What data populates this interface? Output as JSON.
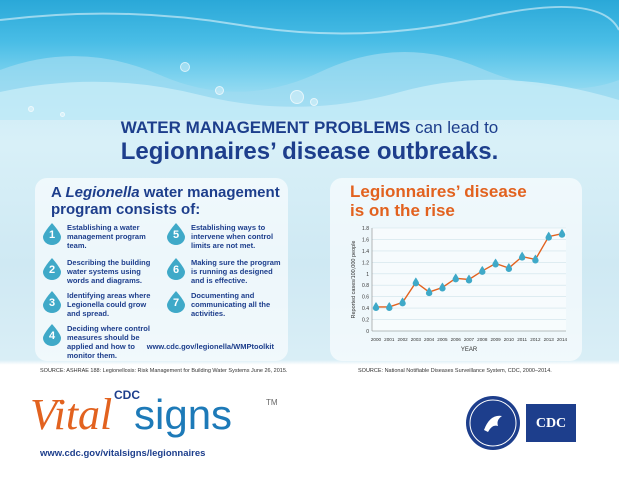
{
  "headline": {
    "line1_prefix": "WATER MANAGEMENT PROBLEMS",
    "line1_suffix": " can lead to",
    "line2": "Legionnaires’ disease outbreaks."
  },
  "left_card": {
    "title_line1_prefix": "A ",
    "title_line1_italic": "Legionella",
    "title_line1_suffix": " water management",
    "title_line2": "program consists of:",
    "steps": [
      {
        "num": "1",
        "text": "Establishing a water management program team."
      },
      {
        "num": "2",
        "text": "Describing the building water systems using words and diagrams."
      },
      {
        "num": "3",
        "text": "Identifying areas where Legionella could grow and spread."
      },
      {
        "num": "4",
        "text": "Deciding where control measures should be applied and how to monitor them."
      },
      {
        "num": "5",
        "text": "Establishing ways to intervene when control limits are not met."
      },
      {
        "num": "6",
        "text": "Making sure the program is running as designed and is effective."
      },
      {
        "num": "7",
        "text": "Documenting and communicating all the activities."
      }
    ],
    "url": "www.cdc.gov/legionella/WMPtoolkit",
    "source": "SOURCE: ASHRAE 188: Legionellosis: Risk Management for Building Water Systems June 26, 2015."
  },
  "right_card": {
    "title_line1": "Legionnaires’ disease",
    "title_line2": "is on the rise",
    "source": "SOURCE: National Notifiable Diseases Surveillance System, CDC, 2000–2014."
  },
  "chart_data": {
    "type": "line",
    "title": "Legionnaires’ disease is on the rise",
    "xlabel": "YEAR",
    "ylabel": "Reported cases/100,000 people",
    "x": [
      "2000",
      "2001",
      "2002",
      "2003",
      "2004",
      "2005",
      "2006",
      "2007",
      "2008",
      "2009",
      "2010",
      "2011",
      "2012",
      "2013",
      "2014"
    ],
    "values": [
      0.42,
      0.42,
      0.5,
      0.85,
      0.68,
      0.76,
      0.92,
      0.9,
      1.05,
      1.18,
      1.1,
      1.3,
      1.25,
      1.65,
      1.7
    ],
    "y_ticks": [
      "0",
      "0.2",
      "0.4",
      "0.6",
      "0.8",
      "1",
      "1.2",
      "1.4",
      "1.6",
      "1.8"
    ],
    "ylim": [
      0,
      1.8
    ],
    "grid": true,
    "colors": {
      "line": "#e2621f",
      "marker": "#3fa9c8"
    }
  },
  "logo": {
    "cdc_small": "CDC",
    "vital": "Vital",
    "signs": "signs",
    "tm": "TM"
  },
  "footer_url": "www.cdc.gov/vitalsigns/legionnaires",
  "badge_text": "CDC"
}
